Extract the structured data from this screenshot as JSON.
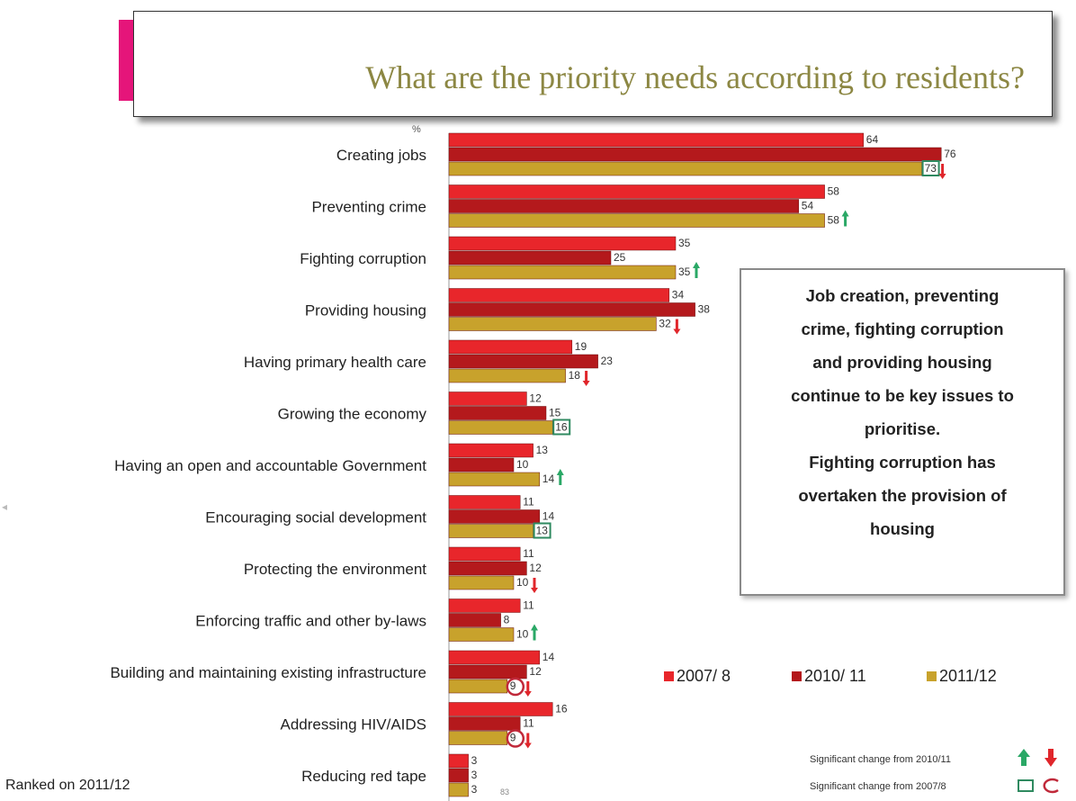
{
  "title": "What are the priority needs according to residents?",
  "unit_label": "%",
  "note": [
    "Job creation, preventing",
    "crime, fighting corruption",
    "and providing housing",
    "continue to be key issues to",
    "prioritise.",
    "Fighting corruption has",
    "overtaken the provision of",
    "housing"
  ],
  "ranked_label": "Ranked on 2011/12",
  "base_label": "83",
  "significance": {
    "from_2010": "Significant change from 2010/11",
    "from_2007": "Significant change from 2007/8"
  },
  "colors": {
    "2007": "#e8262b",
    "2010": "#b4191c",
    "2011": "#c8a22c",
    "up": "#2aa866",
    "down": "#e0262b",
    "box": "#2f8a60",
    "circle": "#c0293a"
  },
  "chart_data": {
    "type": "bar",
    "orientation": "horizontal",
    "categories": [
      "Creating jobs",
      "Preventing crime",
      "Fighting corruption",
      "Providing housing",
      "Having primary health care",
      "Growing the economy",
      "Having an open and accountable Government",
      "Encouraging social development",
      "Protecting the environment",
      "Enforcing traffic and other by-laws",
      "Building and maintaining existing infrastructure",
      "Addressing HIV/AIDS",
      "Reducing red tape"
    ],
    "series": [
      {
        "name": "2007/ 8",
        "values": [
          64,
          58,
          35,
          34,
          19,
          12,
          13,
          11,
          11,
          11,
          14,
          16,
          3
        ]
      },
      {
        "name": "2010/ 11",
        "values": [
          76,
          54,
          25,
          38,
          23,
          15,
          10,
          14,
          12,
          8,
          12,
          11,
          3
        ]
      },
      {
        "name": "2011/12",
        "values": [
          73,
          58,
          35,
          32,
          18,
          16,
          14,
          13,
          10,
          10,
          9,
          9,
          3
        ]
      }
    ],
    "markers_2011": [
      "box-down",
      "up",
      "up",
      "down",
      "down",
      "box",
      "up",
      "box",
      "down",
      "up",
      "circle-down",
      "circle-down",
      ""
    ],
    "legend_position": "bottom-right"
  }
}
